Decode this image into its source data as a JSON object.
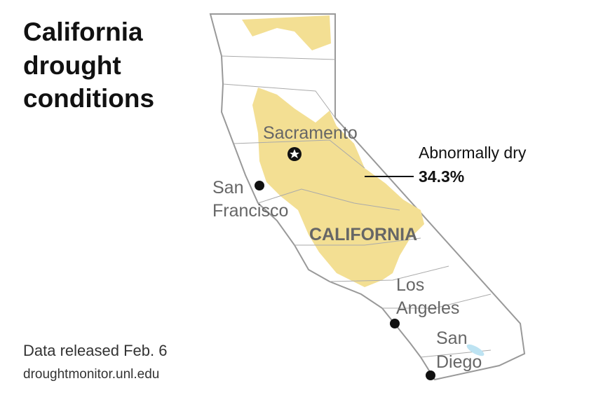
{
  "header": {
    "title_lines": [
      "California",
      "drought",
      "conditions"
    ]
  },
  "map": {
    "state_label": "CALIFORNIA",
    "cities": [
      {
        "lines": [
          "Sacramento"
        ]
      },
      {
        "lines": [
          "San",
          "Francisco"
        ]
      },
      {
        "lines": [
          "Los",
          "Angeles"
        ]
      },
      {
        "lines": [
          "San",
          "Diego"
        ]
      }
    ],
    "annotation": {
      "label": "Abnormally dry",
      "percent": "34.3%"
    }
  },
  "footer": {
    "release": "Data released Feb. 6",
    "source": "droughtmonitor.unl.edu"
  }
}
